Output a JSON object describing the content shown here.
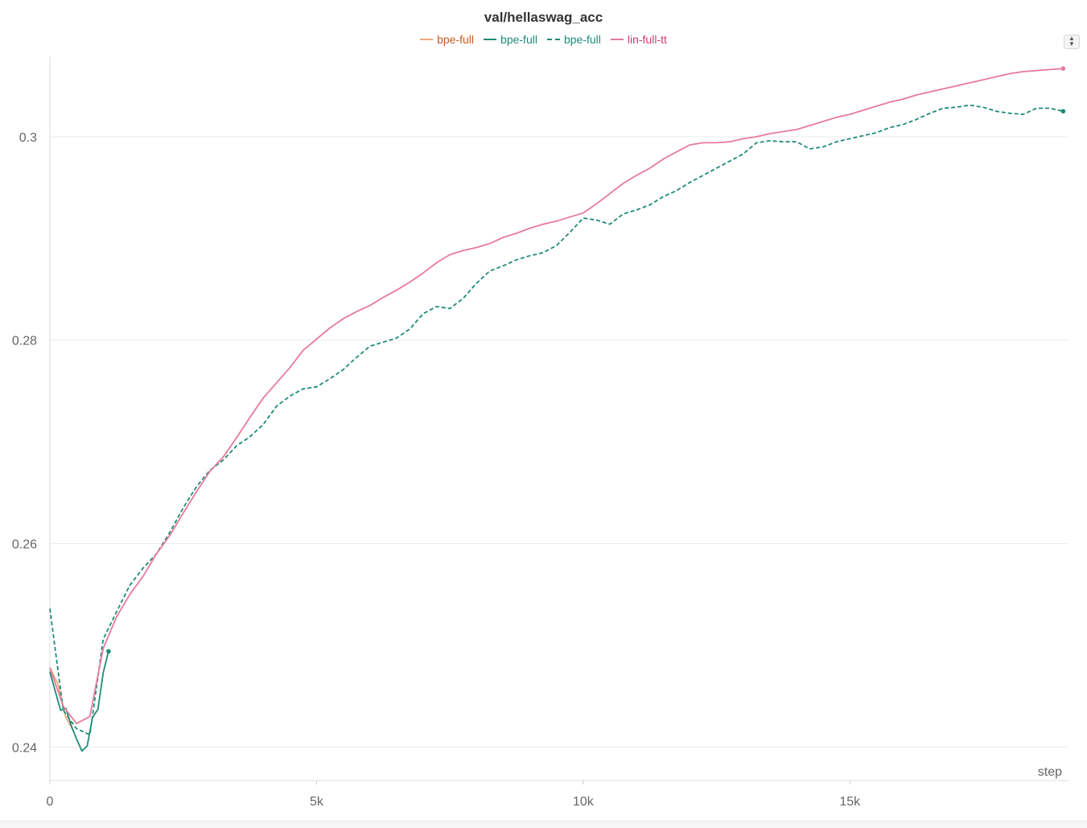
{
  "chart_data": {
    "type": "line",
    "title": "val/hellaswag_acc",
    "xlabel": "step",
    "ylabel": "",
    "xlim": [
      0,
      19100
    ],
    "ylim": [
      0.2367,
      0.3079
    ],
    "x_ticks": [
      {
        "value": 0,
        "label": "0"
      },
      {
        "value": 5000,
        "label": "5k"
      },
      {
        "value": 10000,
        "label": "10k"
      },
      {
        "value": 15000,
        "label": "15k"
      }
    ],
    "y_ticks": [
      {
        "value": 0.24,
        "label": "0.24"
      },
      {
        "value": 0.26,
        "label": "0.26"
      },
      {
        "value": 0.28,
        "label": "0.28"
      },
      {
        "value": 0.3,
        "label": "0.3"
      }
    ],
    "grid": "horizontal",
    "legend_position": "top-center",
    "series": [
      {
        "name": "bpe-full",
        "color": "#f2a77d",
        "label_color": "#c85a1e",
        "dash": "solid",
        "x": [
          0,
          150,
          300,
          450
        ],
        "y": [
          0.2478,
          0.2462,
          0.2429,
          0.2415
        ]
      },
      {
        "name": "bpe-full",
        "color": "#1e8c78",
        "label_color": "#1e8c78",
        "dash": "solid",
        "end_marker": true,
        "x": [
          0,
          100,
          200,
          300,
          400,
          500,
          600,
          700,
          800,
          900,
          1000,
          1100
        ],
        "y": [
          0.2474,
          0.2455,
          0.2436,
          0.2438,
          0.2421,
          0.2408,
          0.2396,
          0.2401,
          0.2429,
          0.2437,
          0.2473,
          0.2494
        ]
      },
      {
        "name": "bpe-full",
        "color": "#1e8c78",
        "label_color": "#1e8c78",
        "dash": "dashed",
        "end_marker": true,
        "x": [
          0,
          250,
          500,
          750,
          1000,
          1250,
          1500,
          1750,
          2000,
          2250,
          2500,
          2750,
          3000,
          3250,
          3500,
          3750,
          4000,
          4250,
          4500,
          4750,
          5000,
          5250,
          5500,
          5750,
          6000,
          6250,
          6500,
          6750,
          7000,
          7250,
          7500,
          7750,
          8000,
          8250,
          8500,
          8750,
          9000,
          9250,
          9500,
          9750,
          10000,
          10250,
          10500,
          10750,
          11000,
          11250,
          11500,
          11750,
          12000,
          12250,
          12500,
          12750,
          13000,
          13250,
          13500,
          13750,
          14000,
          14250,
          14500,
          14750,
          15000,
          15250,
          15500,
          15750,
          16000,
          16250,
          16500,
          16750,
          17000,
          17250,
          17500,
          17750,
          18000,
          18250,
          18500,
          18750,
          19000
        ],
        "y": [
          0.2536,
          0.2436,
          0.2418,
          0.2412,
          0.2506,
          0.2533,
          0.2559,
          0.2576,
          0.259,
          0.2611,
          0.2635,
          0.2656,
          0.2672,
          0.2682,
          0.2696,
          0.2705,
          0.2717,
          0.2735,
          0.2745,
          0.2752,
          0.2754,
          0.2762,
          0.2771,
          0.2783,
          0.2794,
          0.2798,
          0.2802,
          0.2811,
          0.2826,
          0.2833,
          0.2831,
          0.2841,
          0.2856,
          0.2868,
          0.2873,
          0.2879,
          0.2883,
          0.2886,
          0.2893,
          0.2906,
          0.292,
          0.2918,
          0.2914,
          0.2924,
          0.2928,
          0.2933,
          0.2941,
          0.2947,
          0.2955,
          0.2962,
          0.2969,
          0.2976,
          0.2983,
          0.2994,
          0.2996,
          0.2995,
          0.2995,
          0.2988,
          0.299,
          0.2995,
          0.2998,
          0.3001,
          0.3004,
          0.3009,
          0.3012,
          0.3017,
          0.3023,
          0.3028,
          0.3029,
          0.3031,
          0.3029,
          0.3025,
          0.3023,
          0.3022,
          0.3028,
          0.3028,
          0.3025
        ]
      },
      {
        "name": "lin-full-tt",
        "color": "#e87a9c",
        "label_color": "#d43a6a",
        "dash": "solid",
        "end_marker": true,
        "x": [
          0,
          250,
          500,
          750,
          1000,
          1250,
          1500,
          1750,
          2000,
          2250,
          2500,
          2750,
          3000,
          3250,
          3500,
          3750,
          4000,
          4250,
          4500,
          4750,
          5000,
          5250,
          5500,
          5750,
          6000,
          6250,
          6500,
          6750,
          7000,
          7250,
          7500,
          7750,
          8000,
          8250,
          8500,
          8750,
          9000,
          9250,
          9500,
          9750,
          10000,
          10250,
          10500,
          10750,
          11000,
          11250,
          11500,
          11750,
          12000,
          12250,
          12500,
          12750,
          13000,
          13250,
          13500,
          13750,
          14000,
          14250,
          14500,
          14750,
          15000,
          15250,
          15500,
          15750,
          16000,
          16250,
          16500,
          16750,
          17000,
          17250,
          17500,
          17750,
          18000,
          18250,
          18500,
          18750,
          19000
        ],
        "y": [
          0.2478,
          0.244,
          0.2423,
          0.243,
          0.2497,
          0.2528,
          0.255,
          0.2568,
          0.259,
          0.2608,
          0.263,
          0.2651,
          0.2671,
          0.2685,
          0.2704,
          0.2724,
          0.2743,
          0.2758,
          0.2773,
          0.279,
          0.2801,
          0.2812,
          0.2821,
          0.2828,
          0.2834,
          0.2842,
          0.2849,
          0.2857,
          0.2866,
          0.2876,
          0.2884,
          0.2888,
          0.2891,
          0.2895,
          0.2901,
          0.2905,
          0.291,
          0.2914,
          0.2917,
          0.2921,
          0.2925,
          0.2934,
          0.2944,
          0.2954,
          0.2962,
          0.2969,
          0.2978,
          0.2985,
          0.2992,
          0.2994,
          0.2994,
          0.2995,
          0.2998,
          0.3,
          0.3003,
          0.3005,
          0.3007,
          0.3011,
          0.3015,
          0.3019,
          0.3022,
          0.3026,
          0.303,
          0.3034,
          0.3037,
          0.3041,
          0.3044,
          0.3047,
          0.305,
          0.3053,
          0.3056,
          0.3059,
          0.3062,
          0.3064,
          0.3065,
          0.3066,
          0.3067
        ]
      }
    ]
  }
}
